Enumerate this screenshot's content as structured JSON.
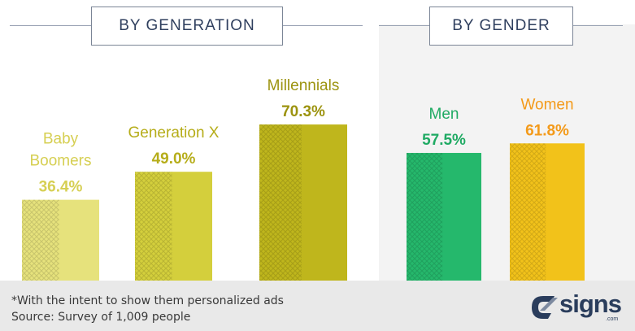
{
  "headers": {
    "generation": "BY GENERATION",
    "gender": "BY GENDER"
  },
  "chart_data": [
    {
      "type": "bar",
      "title": "BY GENERATION",
      "categories": [
        "Baby Boomers",
        "Generation X",
        "Millennials"
      ],
      "values": [
        36.4,
        49.0,
        70.3
      ],
      "value_labels": [
        "36.4%",
        "49.0%",
        "70.3%"
      ],
      "label_lines": [
        [
          "Baby",
          "Boomers"
        ],
        [
          "Generation X"
        ],
        [
          "Millennials"
        ]
      ],
      "colors": [
        "#e6e27c",
        "#d4cf3c",
        "#bfb61c"
      ],
      "text_colors": [
        "#d6cf53",
        "#b6ad1a",
        "#9c930f"
      ],
      "ylim": [
        0,
        100
      ],
      "grid": false
    },
    {
      "type": "bar",
      "title": "BY GENDER",
      "categories": [
        "Men",
        "Women"
      ],
      "values": [
        57.5,
        61.8
      ],
      "value_labels": [
        "57.5%",
        "61.8%"
      ],
      "label_lines": [
        [
          "Men"
        ],
        [
          "Women"
        ]
      ],
      "colors": [
        "#25b86c",
        "#f2c21a"
      ],
      "text_colors": [
        "#1faa63",
        "#f39a1a"
      ],
      "ylim": [
        0,
        100
      ],
      "grid": false
    }
  ],
  "footer": {
    "note": "*With the intent to show them personalized ads",
    "source": "Source: Survey of 1,009 people"
  },
  "logo": {
    "word": "signs",
    "suffix": ".com"
  }
}
